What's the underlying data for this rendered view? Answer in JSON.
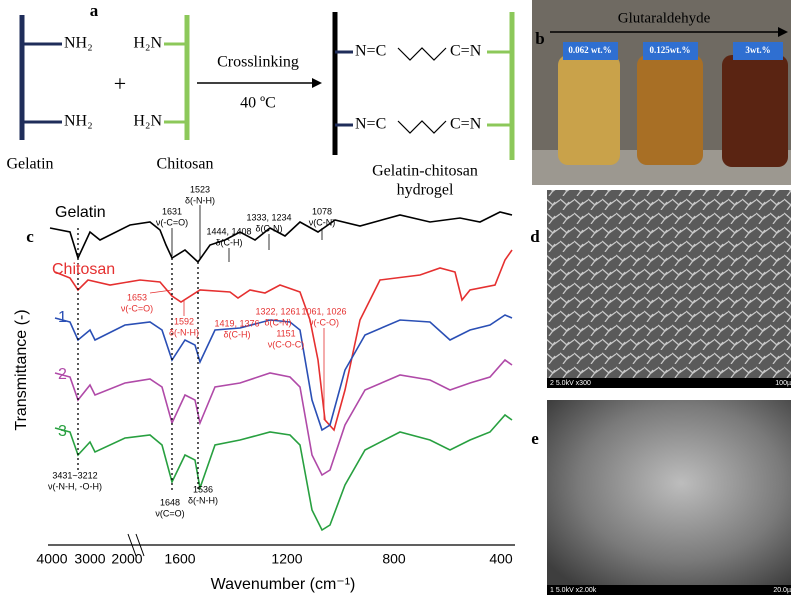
{
  "panel_a": {
    "label": "a",
    "left_groups": [
      "NH₂",
      "NH₂"
    ],
    "right_groups": [
      "H₂N",
      "H₂N"
    ],
    "plus": "+",
    "condition": "Crosslinking",
    "temperature": "40 ºC",
    "links": [
      [
        "N=C",
        "C=N"
      ],
      [
        "N=C",
        "C=N"
      ]
    ],
    "names": [
      "Gelatin",
      "Chitosan"
    ],
    "product": [
      "Gelatin-chitosan",
      "hydrogel"
    ]
  },
  "panel_b": {
    "label": "b",
    "reagent": "Glutaraldehyde",
    "samples": [
      "0.062 wt.%",
      "0.125wt.%",
      "3wt.%"
    ]
  },
  "panel_c": {
    "label": "c",
    "series": [
      "Gelatin",
      "Chitosan",
      "1",
      "2",
      "3"
    ],
    "y_label": "Transmittance (-)",
    "x_label": "Wavenumber (cm⁻¹)",
    "x_ticks": [
      "4000",
      "3000",
      "2000",
      "1600",
      "1200",
      "800",
      "400"
    ],
    "annotations": [
      [
        "1523",
        "δ(-N-H)"
      ],
      [
        "1631",
        "ν(-C=O)"
      ],
      [
        "1444, 1408",
        "δ(C-H)"
      ],
      [
        "1333, 1234",
        "δ(C-N)"
      ],
      [
        "1078",
        "ν(C-N)"
      ],
      [
        "1653",
        "ν(-C=O)"
      ],
      [
        "1592",
        "δ(-N-H)"
      ],
      [
        "1419, 1376",
        "δ(C-H)"
      ],
      [
        "1322, 1261",
        "δ(C-N)"
      ],
      [
        "1151",
        "ν(C-O-C)"
      ],
      [
        "1061, 1026",
        "ν(-C-O)"
      ],
      [
        "3431~3212",
        "ν(-N-H, -O-H)"
      ],
      [
        "1648",
        "ν(C=O)"
      ],
      [
        "1536",
        "δ(-N-H)"
      ]
    ]
  },
  "panel_d": {
    "label": "d",
    "info": "2 5.0kV x300",
    "scale": "100µ"
  },
  "panel_e": {
    "label": "e",
    "info": "1 5.0kV x2.00k",
    "scale": "20.0µ"
  }
}
